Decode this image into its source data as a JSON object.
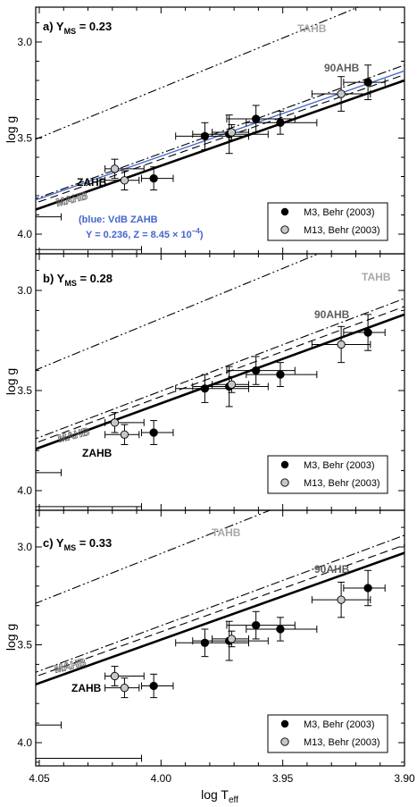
{
  "figure": {
    "xlabel_main": "log T",
    "xlabel_sub": "eff",
    "ylabel": "log g",
    "x_ticks": [
      "4.05",
      "4.00",
      "3.95",
      "3.90"
    ],
    "y_ticks": [
      "3.0",
      "3.5",
      "4.0"
    ]
  },
  "legend": {
    "m3": "M3, Behr (2003)",
    "m13": "M13, Behr (2003)"
  },
  "chart_data": [
    {
      "type": "line",
      "panel_title_prefix": "a) Y",
      "panel_title_sub": "MS",
      "panel_title_suffix": " = 0.23",
      "xlim": [
        4.06,
        3.9
      ],
      "ylim": [
        4.12,
        2.77
      ],
      "legend_position": "bottom-right",
      "series": [
        {
          "name": "ZAHB",
          "style": "solid-thick",
          "x": [
            4.06,
            3.9
          ],
          "y": [
            3.91,
            3.2
          ]
        },
        {
          "name": "MAHB",
          "style": "dashed",
          "x": [
            4.06,
            3.9
          ],
          "y": [
            3.875,
            3.17
          ]
        },
        {
          "name": "90AHB",
          "style": "dash-dot",
          "x": [
            4.06,
            3.9
          ],
          "y": [
            3.855,
            3.12
          ]
        },
        {
          "name": "TAHB",
          "style": "dash-dot-dot",
          "x": [
            4.06,
            3.9
          ],
          "y": [
            3.55,
            2.72
          ]
        },
        {
          "name": "VdB ZAHB",
          "style": "blue",
          "x": [
            4.06,
            3.9
          ],
          "y": [
            3.86,
            3.15
          ]
        }
      ],
      "labels": {
        "zahb": "ZAHB",
        "mahb": "MAHB",
        "ahb90": "90AHB",
        "tahb": "TAHB",
        "vdb1": "(blue: VdB ZAHB",
        "vdb2": "Y = 0.236, Z = 8.45 × 10",
        "vdb_exp": "−4",
        "vdb_close": ")"
      }
    },
    {
      "type": "line",
      "panel_title_prefix": "b) Y",
      "panel_title_sub": "MS",
      "panel_title_suffix": " = 0.28",
      "xlim": [
        4.06,
        3.9
      ],
      "ylim": [
        4.12,
        2.77
      ],
      "legend_position": "bottom-right",
      "series": [
        {
          "name": "ZAHB",
          "style": "solid-thick",
          "x": [
            4.06,
            3.9
          ],
          "y": [
            3.83,
            3.12
          ]
        },
        {
          "name": "MAHB",
          "style": "dashed",
          "x": [
            4.06,
            3.9
          ],
          "y": [
            3.8,
            3.08
          ]
        },
        {
          "name": "90AHB",
          "style": "dash-dot",
          "x": [
            4.06,
            3.9
          ],
          "y": [
            3.78,
            3.04
          ]
        },
        {
          "name": "TAHB",
          "style": "dash-dot-dot",
          "x": [
            4.06,
            3.9
          ],
          "y": [
            3.44,
            2.64
          ]
        }
      ],
      "labels": {
        "zahb": "ZAHB",
        "mahb": "MAHB",
        "ahb90": "90AHB",
        "tahb": "TAHB"
      }
    },
    {
      "type": "line",
      "panel_title_prefix": "c) Y",
      "panel_title_sub": "MS",
      "panel_title_suffix": " = 0.33",
      "xlim": [
        4.06,
        3.9
      ],
      "ylim": [
        4.12,
        2.77
      ],
      "legend_position": "bottom-right",
      "series": [
        {
          "name": "ZAHB",
          "style": "solid-thick",
          "x": [
            4.06,
            3.9
          ],
          "y": [
            3.74,
            3.03
          ]
        },
        {
          "name": "MAHB",
          "style": "dashed",
          "x": [
            4.06,
            3.9
          ],
          "y": [
            3.7,
            2.99
          ]
        },
        {
          "name": "90AHB",
          "style": "dash-dot",
          "x": [
            4.06,
            3.9
          ],
          "y": [
            3.68,
            2.94
          ]
        },
        {
          "name": "TAHB",
          "style": "dash-dot-dot",
          "x": [
            4.06,
            3.9
          ],
          "y": [
            3.33,
            2.54
          ]
        }
      ],
      "labels": {
        "zahb": "ZAHB",
        "mahb": "MAHB",
        "ahb90": "90AHB",
        "tahb": "TAHB"
      }
    }
  ],
  "observations": {
    "m3": [
      {
        "x": 4.003,
        "y": 3.71,
        "xerr_lo": 0.005,
        "xerr_hi": 0.008,
        "yerr": 0.06
      },
      {
        "x": 3.982,
        "y": 3.49,
        "xerr_lo": 0.012,
        "xerr_hi": 0.018,
        "yerr": 0.07
      },
      {
        "x": 3.972,
        "y": 3.48,
        "xerr_lo": 0.015,
        "xerr_hi": 0.016,
        "yerr": 0.1
      },
      {
        "x": 3.961,
        "y": 3.4,
        "xerr_lo": 0.012,
        "xerr_hi": 0.016,
        "yerr": 0.07
      },
      {
        "x": 3.951,
        "y": 3.42,
        "xerr_lo": 0.014,
        "xerr_hi": 0.015,
        "yerr": 0.06
      },
      {
        "x": 3.915,
        "y": 3.21,
        "xerr_lo": 0.01,
        "xerr_hi": 0.007,
        "yerr": 0.09
      }
    ],
    "m13": [
      {
        "x": 4.019,
        "y": 3.66,
        "xerr_lo": 0.004,
        "xerr_hi": 0.012,
        "yerr": 0.05
      },
      {
        "x": 4.015,
        "y": 3.72,
        "xerr_lo": 0.008,
        "xerr_hi": 0.006,
        "yerr": 0.05
      },
      {
        "x": 3.971,
        "y": 3.47,
        "xerr_lo": 0.008,
        "xerr_hi": 0.007,
        "yerr": 0.04
      },
      {
        "x": 3.926,
        "y": 3.27,
        "xerr_lo": 0.012,
        "xerr_hi": 0.012,
        "yerr": 0.09
      }
    ],
    "edge_bars": [
      {
        "x_lo": 4.06,
        "x_hi": 4.041,
        "y": 3.91
      },
      {
        "x_lo": 4.06,
        "x_hi": 4.008,
        "y": 4.08
      }
    ]
  },
  "colors": {
    "axis": "#000000",
    "zahb": "#000000",
    "ahb90": "#5c5c5c",
    "tahb": "#a8a8a8",
    "vdb": "#4466cc",
    "m3_marker": "#000000",
    "m13_marker": "#c8c8c8"
  }
}
